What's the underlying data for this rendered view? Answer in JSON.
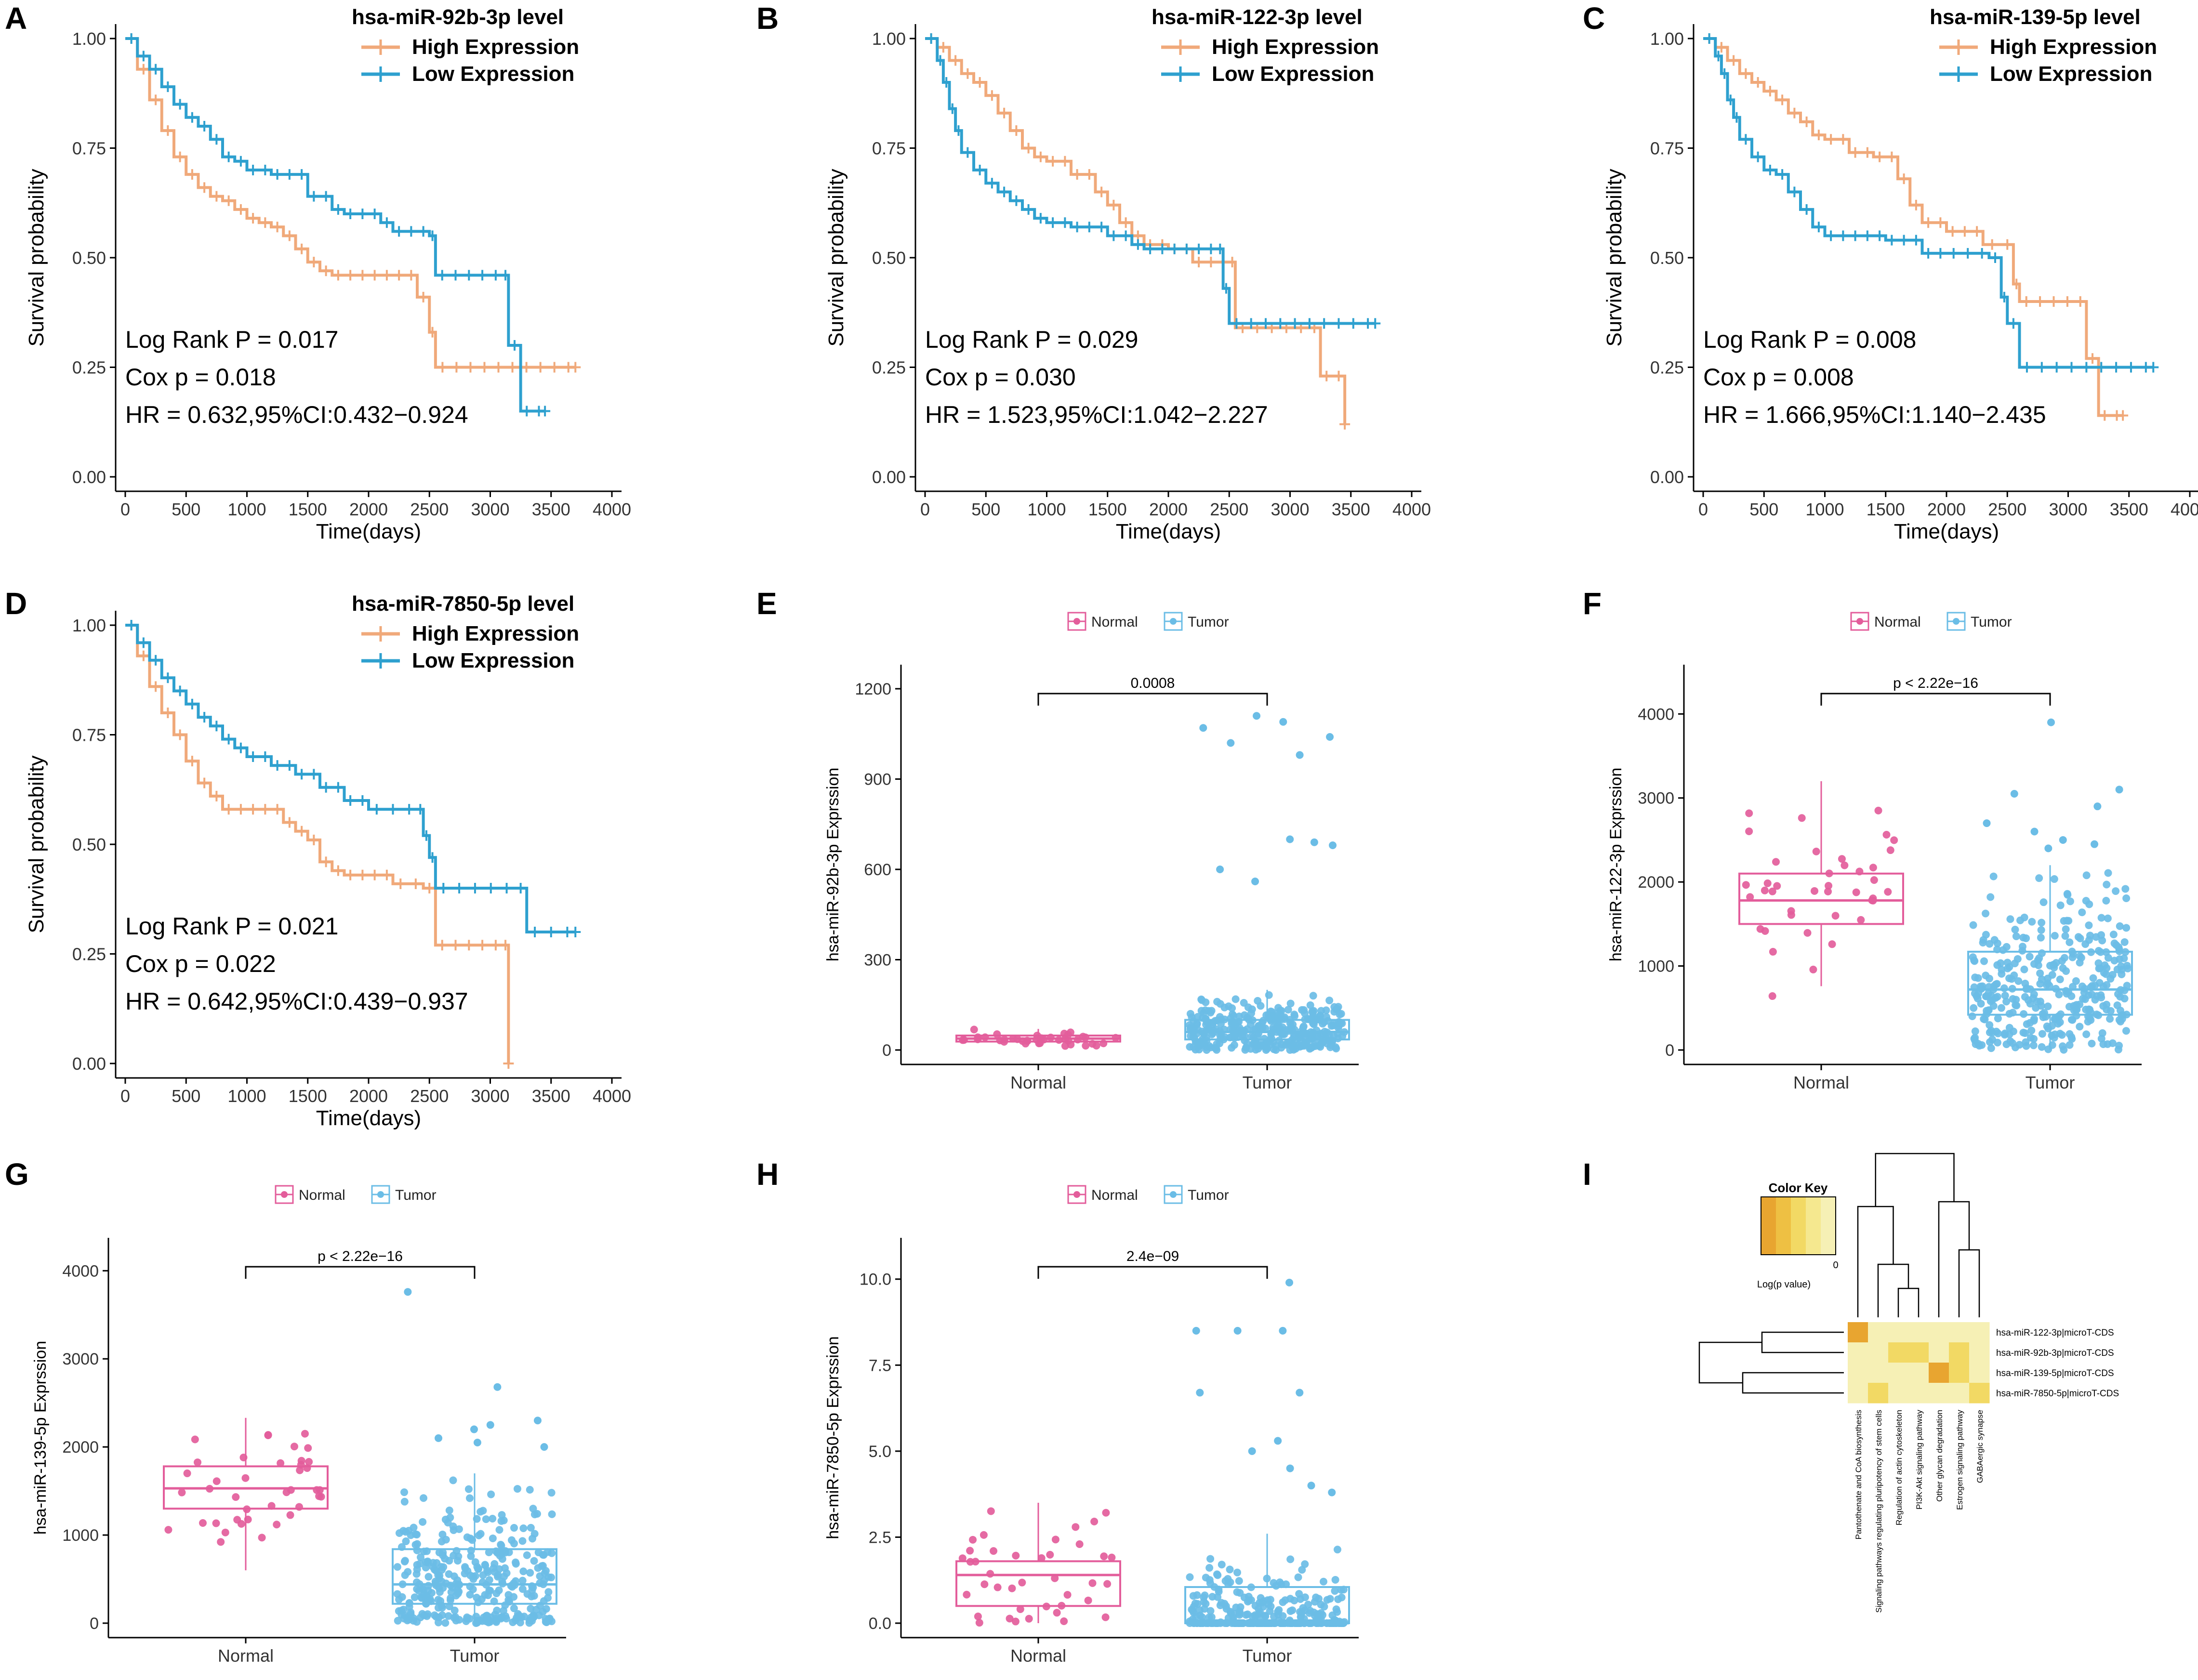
{
  "figure": {
    "panel_letters": [
      "A",
      "B",
      "C",
      "D",
      "E",
      "F",
      "G",
      "H",
      "I"
    ]
  },
  "chart_data": [
    {
      "panel": "A",
      "type": "line",
      "subtype": "kaplan-meier",
      "legend_title": "hsa-miR-92b-3p level",
      "ylabel": "Survival probability",
      "xlabel": "Time(days)",
      "xlim": [
        0,
        4000
      ],
      "ylim": [
        0,
        1
      ],
      "xticks": [
        "0",
        "500",
        "1000",
        "1500",
        "2000",
        "2500",
        "3000",
        "3500",
        "4000"
      ],
      "yticks": [
        "0.00",
        "0.25",
        "0.50",
        "0.75",
        "1.00"
      ],
      "stats": [
        "Log Rank P = 0.017",
        "Cox p = 0.018",
        "HR = 0.632,95%CI:0.432−0.924"
      ],
      "series": [
        {
          "name": "High Expression",
          "color": "#F0A97A",
          "x": [
            0,
            100,
            200,
            300,
            400,
            500,
            600,
            700,
            800,
            900,
            1000,
            1100,
            1200,
            1300,
            1400,
            1500,
            1600,
            1700,
            1800,
            2000,
            2200,
            2400,
            2500,
            2550,
            3700
          ],
          "y": [
            1.0,
            0.93,
            0.86,
            0.79,
            0.73,
            0.69,
            0.66,
            0.64,
            0.63,
            0.61,
            0.59,
            0.58,
            0.57,
            0.55,
            0.52,
            0.49,
            0.47,
            0.46,
            0.46,
            0.46,
            0.46,
            0.41,
            0.33,
            0.25,
            0.25
          ]
        },
        {
          "name": "Low Expression",
          "color": "#2EA0CF",
          "x": [
            0,
            100,
            200,
            300,
            400,
            500,
            600,
            700,
            800,
            900,
            1000,
            1200,
            1500,
            1700,
            1800,
            2100,
            2200,
            2500,
            2550,
            3100,
            3150,
            3250,
            3450
          ],
          "y": [
            1.0,
            0.96,
            0.93,
            0.89,
            0.85,
            0.82,
            0.8,
            0.77,
            0.73,
            0.72,
            0.7,
            0.69,
            0.64,
            0.61,
            0.6,
            0.58,
            0.56,
            0.55,
            0.46,
            0.46,
            0.3,
            0.15,
            0.15
          ]
        }
      ]
    },
    {
      "panel": "B",
      "type": "line",
      "subtype": "kaplan-meier",
      "legend_title": "hsa-miR-122-3p level",
      "ylabel": "Survival probability",
      "xlabel": "Time(days)",
      "xlim": [
        0,
        4000
      ],
      "ylim": [
        0,
        1
      ],
      "xticks": [
        "0",
        "500",
        "1000",
        "1500",
        "2000",
        "2500",
        "3000",
        "3500",
        "4000"
      ],
      "yticks": [
        "0.00",
        "0.25",
        "0.50",
        "0.75",
        "1.00"
      ],
      "stats": [
        "Log Rank P = 0.029",
        "Cox p = 0.030",
        "HR = 1.523,95%CI:1.042−2.227"
      ],
      "series": [
        {
          "name": "High Expression",
          "color": "#F0A97A",
          "x": [
            0,
            100,
            200,
            300,
            400,
            500,
            600,
            700,
            800,
            900,
            1000,
            1200,
            1400,
            1500,
            1600,
            1700,
            1800,
            2000,
            2200,
            2500,
            2550,
            3150,
            3250,
            3450
          ],
          "y": [
            1.0,
            0.98,
            0.95,
            0.92,
            0.9,
            0.87,
            0.83,
            0.79,
            0.75,
            0.73,
            0.72,
            0.69,
            0.65,
            0.62,
            0.58,
            0.55,
            0.53,
            0.52,
            0.49,
            0.49,
            0.34,
            0.34,
            0.23,
            0.12
          ]
        },
        {
          "name": "Low Expression",
          "color": "#2EA0CF",
          "x": [
            0,
            100,
            150,
            200,
            250,
            300,
            400,
            500,
            600,
            700,
            800,
            900,
            1000,
            1200,
            1500,
            1700,
            1800,
            2000,
            2300,
            2400,
            2450,
            2500,
            3700
          ],
          "y": [
            1.0,
            0.95,
            0.9,
            0.84,
            0.79,
            0.74,
            0.7,
            0.67,
            0.65,
            0.63,
            0.61,
            0.59,
            0.58,
            0.57,
            0.55,
            0.53,
            0.52,
            0.52,
            0.52,
            0.52,
            0.43,
            0.35,
            0.35
          ]
        }
      ]
    },
    {
      "panel": "C",
      "type": "line",
      "subtype": "kaplan-meier",
      "legend_title": "hsa-miR-139-5p level",
      "ylabel": "Survival probability",
      "xlabel": "Time(days)",
      "xlim": [
        0,
        4000
      ],
      "ylim": [
        0,
        1
      ],
      "xticks": [
        "0",
        "500",
        "1000",
        "1500",
        "2000",
        "2500",
        "3000",
        "3500",
        "4000"
      ],
      "yticks": [
        "0.00",
        "0.25",
        "0.50",
        "0.75",
        "1.00"
      ],
      "stats": [
        "Log Rank P = 0.008",
        "Cox p = 0.008",
        "HR = 1.666,95%CI:1.140−2.435"
      ],
      "series": [
        {
          "name": "High Expression",
          "color": "#F0A97A",
          "x": [
            0,
            100,
            200,
            300,
            400,
            500,
            600,
            700,
            800,
            900,
            1000,
            1200,
            1400,
            1600,
            1700,
            1800,
            2000,
            2300,
            2450,
            2550,
            2600,
            3050,
            3150,
            3250,
            3450
          ],
          "y": [
            1.0,
            0.98,
            0.95,
            0.92,
            0.9,
            0.88,
            0.86,
            0.83,
            0.81,
            0.78,
            0.77,
            0.74,
            0.73,
            0.68,
            0.62,
            0.58,
            0.56,
            0.53,
            0.53,
            0.44,
            0.4,
            0.4,
            0.27,
            0.14,
            0.14
          ]
        },
        {
          "name": "Low Expression",
          "color": "#2EA0CF",
          "x": [
            0,
            100,
            150,
            200,
            250,
            300,
            400,
            500,
            600,
            700,
            800,
            900,
            1000,
            1200,
            1500,
            1800,
            2000,
            2350,
            2450,
            2500,
            2600,
            3700
          ],
          "y": [
            1.0,
            0.96,
            0.92,
            0.86,
            0.82,
            0.77,
            0.73,
            0.7,
            0.69,
            0.65,
            0.61,
            0.57,
            0.55,
            0.55,
            0.54,
            0.51,
            0.51,
            0.5,
            0.41,
            0.35,
            0.25,
            0.25
          ]
        }
      ]
    },
    {
      "panel": "D",
      "type": "line",
      "subtype": "kaplan-meier",
      "legend_title": "hsa-miR-7850-5p level",
      "ylabel": "Survival probability",
      "xlabel": "Time(days)",
      "xlim": [
        0,
        4000
      ],
      "ylim": [
        0,
        1
      ],
      "xticks": [
        "0",
        "500",
        "1000",
        "1500",
        "2000",
        "2500",
        "3000",
        "3500",
        "4000"
      ],
      "yticks": [
        "0.00",
        "0.25",
        "0.50",
        "0.75",
        "1.00"
      ],
      "stats": [
        "Log Rank P = 0.021",
        "Cox p = 0.022",
        "HR = 0.642,95%CI:0.439−0.937"
      ],
      "series": [
        {
          "name": "High Expression",
          "color": "#F0A97A",
          "x": [
            0,
            100,
            200,
            300,
            400,
            500,
            600,
            700,
            800,
            1000,
            1200,
            1300,
            1400,
            1500,
            1600,
            1700,
            1800,
            2100,
            2200,
            2450,
            2550,
            3100,
            3150
          ],
          "y": [
            1.0,
            0.93,
            0.86,
            0.8,
            0.75,
            0.69,
            0.64,
            0.61,
            0.58,
            0.58,
            0.58,
            0.55,
            0.53,
            0.51,
            0.46,
            0.44,
            0.43,
            0.43,
            0.41,
            0.4,
            0.27,
            0.27,
            0.0
          ]
        },
        {
          "name": "Low Expression",
          "color": "#2EA0CF",
          "x": [
            0,
            100,
            200,
            300,
            400,
            500,
            600,
            700,
            800,
            900,
            1000,
            1200,
            1400,
            1600,
            1800,
            2000,
            2400,
            2450,
            2500,
            2550,
            3200,
            3300,
            3700
          ],
          "y": [
            1.0,
            0.96,
            0.92,
            0.88,
            0.85,
            0.82,
            0.79,
            0.77,
            0.74,
            0.72,
            0.7,
            0.68,
            0.66,
            0.63,
            0.6,
            0.58,
            0.58,
            0.52,
            0.47,
            0.4,
            0.4,
            0.3,
            0.3
          ]
        }
      ]
    },
    {
      "panel": "E",
      "type": "box",
      "ylabel": "hsa-miR-92b-3p Exprssion",
      "categories": [
        "Normal",
        "Tumor"
      ],
      "legend": [
        "Normal",
        "Tumor"
      ],
      "colors": [
        "#E35D9B",
        "#6BBDE6"
      ],
      "ylim": [
        0,
        1200
      ],
      "yticks": [
        "0",
        "300",
        "600",
        "900",
        "1200"
      ],
      "p_label": "0.0008",
      "boxes": [
        {
          "name": "Normal",
          "q1": 28,
          "median": 38,
          "q3": 48,
          "whisker_low": 14,
          "whisker_high": 70
        },
        {
          "name": "Tumor",
          "q1": 35,
          "median": 60,
          "q3": 100,
          "whisker_low": 0,
          "whisker_high": 200
        }
      ],
      "points_n": [
        40,
        350
      ],
      "outliers_tumor": [
        1110,
        1090,
        1070,
        1040,
        1020,
        980,
        700,
        690,
        680,
        600,
        560
      ]
    },
    {
      "panel": "F",
      "type": "box",
      "ylabel": "hsa-miR-122-3p Exprssion",
      "categories": [
        "Normal",
        "Tumor"
      ],
      "legend": [
        "Normal",
        "Tumor"
      ],
      "colors": [
        "#E35D9B",
        "#6BBDE6"
      ],
      "ylim": [
        0,
        4300
      ],
      "yticks": [
        "0",
        "1000",
        "2000",
        "3000",
        "4000"
      ],
      "p_label": "p < 2.22e−16",
      "boxes": [
        {
          "name": "Normal",
          "q1": 1500,
          "median": 1780,
          "q3": 2100,
          "whisker_low": 760,
          "whisker_high": 3200
        },
        {
          "name": "Tumor",
          "q1": 420,
          "median": 720,
          "q3": 1170,
          "whisker_low": 0,
          "whisker_high": 2200
        }
      ],
      "points_n": [
        40,
        350
      ],
      "outliers_tumor": [
        3900,
        3100,
        3050,
        2900,
        2700,
        2600,
        2500,
        2450,
        2400
      ]
    },
    {
      "panel": "G",
      "type": "box",
      "ylabel": "hsa-miR-139-5p Exprssion",
      "categories": [
        "Normal",
        "Tumor"
      ],
      "legend": [
        "Normal",
        "Tumor"
      ],
      "colors": [
        "#E35D9B",
        "#6BBDE6"
      ],
      "ylim": [
        0,
        4100
      ],
      "yticks": [
        "0",
        "1000",
        "2000",
        "3000",
        "4000"
      ],
      "p_label": "p < 2.22e−16",
      "boxes": [
        {
          "name": "Normal",
          "q1": 1300,
          "median": 1530,
          "q3": 1780,
          "whisker_low": 600,
          "whisker_high": 2330
        },
        {
          "name": "Tumor",
          "q1": 220,
          "median": 440,
          "q3": 840,
          "whisker_low": 0,
          "whisker_high": 1700
        }
      ],
      "points_n": [
        40,
        350
      ],
      "outliers_tumor": [
        3760,
        2680,
        2300,
        2250,
        2200,
        2100,
        2050,
        2000
      ]
    },
    {
      "panel": "H",
      "type": "box",
      "ylabel": "hsa-miR-7850-5p Exprssion",
      "categories": [
        "Normal",
        "Tumor"
      ],
      "legend": [
        "Normal",
        "Tumor"
      ],
      "colors": [
        "#E35D9B",
        "#6BBDE6"
      ],
      "ylim": [
        0,
        10.5
      ],
      "yticks": [
        "0.0",
        "2.5",
        "5.0",
        "7.5",
        "10.0"
      ],
      "p_label": "2.4e−09",
      "boxes": [
        {
          "name": "Normal",
          "q1": 0.5,
          "median": 1.4,
          "q3": 1.8,
          "whisker_low": 0,
          "whisker_high": 3.5
        },
        {
          "name": "Tumor",
          "q1": 0,
          "median": 0,
          "q3": 1.05,
          "whisker_low": 0,
          "whisker_high": 2.6
        }
      ],
      "points_n": [
        40,
        300
      ],
      "outliers_tumor": [
        9.9,
        8.5,
        8.5,
        8.5,
        6.7,
        6.7,
        5.3,
        5.0,
        4.5,
        4.0,
        3.8
      ]
    },
    {
      "panel": "I",
      "type": "heatmap",
      "color_key_title": "Color Key",
      "color_key_xlabel": "Log(p value)",
      "color_key_tick": "0",
      "color_key_colors": [
        "#E8A530",
        "#EEC043",
        "#F2D964",
        "#F5E88F",
        "#F6F0B5"
      ],
      "rows": [
        "hsa-miR-122-3p|microT-CDS",
        "hsa-miR-92b-3p|microT-CDS",
        "hsa-miR-139-5p|microT-CDS",
        "hsa-miR-7850-5p|microT-CDS"
      ],
      "columns": [
        "Pantothenate and CoA biosynthesis",
        "Signaling pathways regulating pluripotency of stem cells",
        "Regulation of actin cytoskeleton",
        "PI3K-Akt signaling pathway",
        "Other glycan degradation",
        "Estrogen signaling pathway",
        "GABAergic synapse"
      ],
      "values": [
        [
          -4,
          0,
          0,
          0,
          0,
          0,
          0
        ],
        [
          0,
          0,
          -1,
          -1,
          0,
          -1,
          0
        ],
        [
          0,
          0,
          0,
          0,
          -3,
          -1,
          0
        ],
        [
          0,
          -1,
          0,
          0,
          0,
          0,
          -1
        ]
      ]
    }
  ]
}
